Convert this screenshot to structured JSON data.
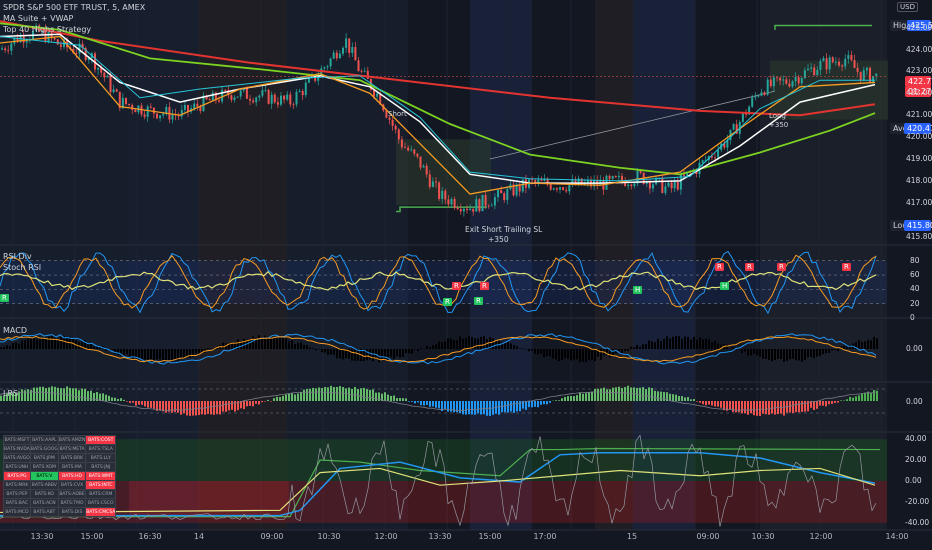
{
  "header": {
    "symbol_line": "SPDR S&P 500 ETF TRUST, 5, AMEX",
    "indicator_1": "MA Suite + VWAP",
    "indicator_2": "Top 40 Highs Strategy"
  },
  "currency": "USD",
  "price_pane": {
    "ylim": [
      415.3,
      425.9
    ],
    "y_ticks": [
      "425.00",
      "424.00",
      "423.00",
      "422.00",
      "421.00",
      "420.00",
      "419.00",
      "418.00",
      "417.00",
      "415.80"
    ],
    "high_label": "High",
    "high_value": "425.52",
    "last_value": "422.77",
    "countdown": "01:27",
    "avg_label": "Avg",
    "avg_value": "420.47",
    "low_label": "Low",
    "low_value": "415.80",
    "low_tick": "415.80",
    "annotations": [
      {
        "name": "exit-short-annotation",
        "line1": "Exit Short Trailing SL",
        "line2": "+350"
      },
      {
        "name": "short-annotation",
        "line1": "Short"
      },
      {
        "name": "long-annotation",
        "line1": "Long",
        "line2": "+350"
      }
    ]
  },
  "rsi_pane": {
    "title_1": "RSI Div",
    "title_2": "Stoch RSI",
    "y_ticks": [
      "80",
      "60",
      "40",
      "20",
      "0"
    ],
    "signals": [
      {
        "t": "R",
        "c": "#f23645"
      },
      {
        "t": "R",
        "c": "#f23645"
      },
      {
        "t": "R",
        "c": "#f23645"
      },
      {
        "t": "R",
        "c": "#f23645"
      },
      {
        "t": "R",
        "c": "#f23645"
      },
      {
        "t": "R",
        "c": "#f23645"
      },
      {
        "t": "R",
        "c": "#22c55e"
      },
      {
        "t": "R",
        "c": "#22c55e"
      },
      {
        "t": "H",
        "c": "#22c55e"
      },
      {
        "t": "H",
        "c": "#22c55e"
      },
      {
        "t": "R",
        "c": "#22c55e"
      }
    ]
  },
  "macd_pane": {
    "title": "MACD",
    "y_tick": "0.00"
  },
  "lrs_pane": {
    "title": "LRS",
    "y_tick": "0.00"
  },
  "osc_pane": {
    "y_ticks": [
      "40.00",
      "20.00",
      "0.00",
      "-20.00",
      "-40.00"
    ],
    "table": [
      [
        "BATS:MSFT",
        "BATS:AAPL",
        "BATS:AMZN",
        "BATS:COST"
      ],
      [
        "BATS:NVDA",
        "BATS:GOOG",
        "BATS:META",
        "BATS:TSLA"
      ],
      [
        "BATS:AVGO",
        "BATS:JPM",
        "BATS:BRK",
        "BATS:LLY"
      ],
      [
        "BATS:UNH",
        "BATS:XOM",
        "BATS:MA",
        "BATS:JNJ"
      ],
      [
        "BATS:PG",
        "BATS:V",
        "BATS:HD",
        "BATS:WMT"
      ],
      [
        "BATS:MRK",
        "BATS:ABBV",
        "BATS:CVX",
        "BATS:INTC"
      ],
      [
        "BATS:PEP",
        "BATS:KO",
        "BATS:ADBE",
        "BATS:CRM"
      ],
      [
        "BATS:BAC",
        "BATS:ACN",
        "BATS:TMO",
        "BATS:CSCO"
      ],
      [
        "BATS:MCD",
        "BATS:ABT",
        "BATS:DIS",
        "BATS:CMCSA"
      ]
    ]
  },
  "x_axis": [
    "13:30",
    "15:00",
    "16:30",
    "14",
    "09:00",
    "10:30",
    "12:00",
    "13:30",
    "15:00",
    "17:00",
    "15",
    "09:00",
    "10:30",
    "12:00",
    "14:00"
  ],
  "colors": {
    "background": "#131722",
    "up": "#26a69a",
    "down": "#ef5350",
    "red_ma": "#e3342f",
    "green_ma": "#7cd321",
    "white_ma": "#ffffff",
    "orange_ma": "#f59b23",
    "blue_ma": "#2196f3"
  }
}
